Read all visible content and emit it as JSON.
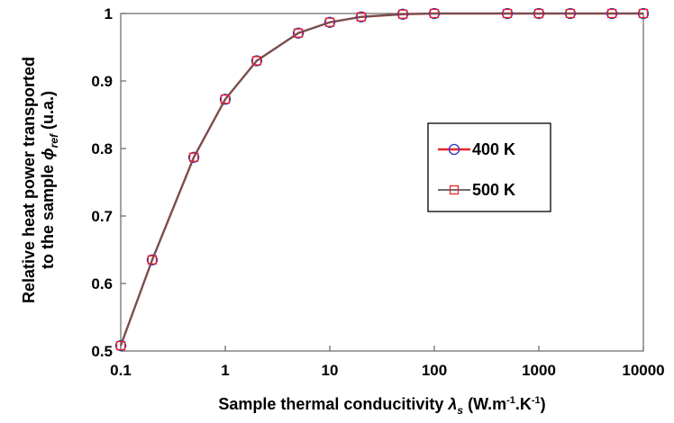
{
  "chart_data": {
    "type": "line",
    "x_scale": "log",
    "xlim": [
      0.1,
      10000
    ],
    "ylim": [
      0.5,
      1
    ],
    "grid": false,
    "legend_position": "right-middle",
    "x": [
      0.1,
      0.2,
      0.5,
      1,
      2,
      5,
      10,
      20,
      50,
      100,
      500,
      1000,
      2000,
      5000,
      10000
    ],
    "series": [
      {
        "name": "400 K",
        "line_color": "#e8262a",
        "marker": "circle",
        "marker_color": "#2b35c4",
        "values": [
          0.508,
          0.635,
          0.787,
          0.873,
          0.93,
          0.971,
          0.987,
          0.995,
          0.999,
          1.0,
          1.0,
          1.0,
          1.0,
          1.0,
          1.0
        ]
      },
      {
        "name": "500 K",
        "line_color": "#5a5a5a",
        "marker": "square",
        "marker_color": "#e8262a",
        "values": [
          0.508,
          0.635,
          0.787,
          0.873,
          0.93,
          0.971,
          0.987,
          0.995,
          0.999,
          1.0,
          1.0,
          1.0,
          1.0,
          1.0,
          1.0
        ]
      }
    ],
    "x_ticks": [
      {
        "value": 0.1,
        "label": "0.1"
      },
      {
        "value": 1,
        "label": "1"
      },
      {
        "value": 10,
        "label": "10"
      },
      {
        "value": 100,
        "label": "100"
      },
      {
        "value": 1000,
        "label": "1000"
      },
      {
        "value": 10000,
        "label": "10000"
      }
    ],
    "y_ticks": [
      {
        "value": 0.5,
        "label": "0.5"
      },
      {
        "value": 0.6,
        "label": "0.6"
      },
      {
        "value": 0.7,
        "label": "0.7"
      },
      {
        "value": 0.8,
        "label": "0.8"
      },
      {
        "value": 0.9,
        "label": "0.9"
      },
      {
        "value": 1,
        "label": "1"
      }
    ],
    "xlabel": {
      "main": "Sample thermal conducitivity ",
      "symbol": "λ",
      "symbol_sub": "s",
      "units_open": " (W.m",
      "exp1": "-1",
      "mid": ".K",
      "exp2": "-1",
      "units_close": ")"
    },
    "ylabel": {
      "line1": "Relative heat power transported",
      "line2_main": "to the sample ",
      "symbol": "ϕ",
      "symbol_sub": "ref",
      "line2_units": "  (u.a.)"
    }
  }
}
